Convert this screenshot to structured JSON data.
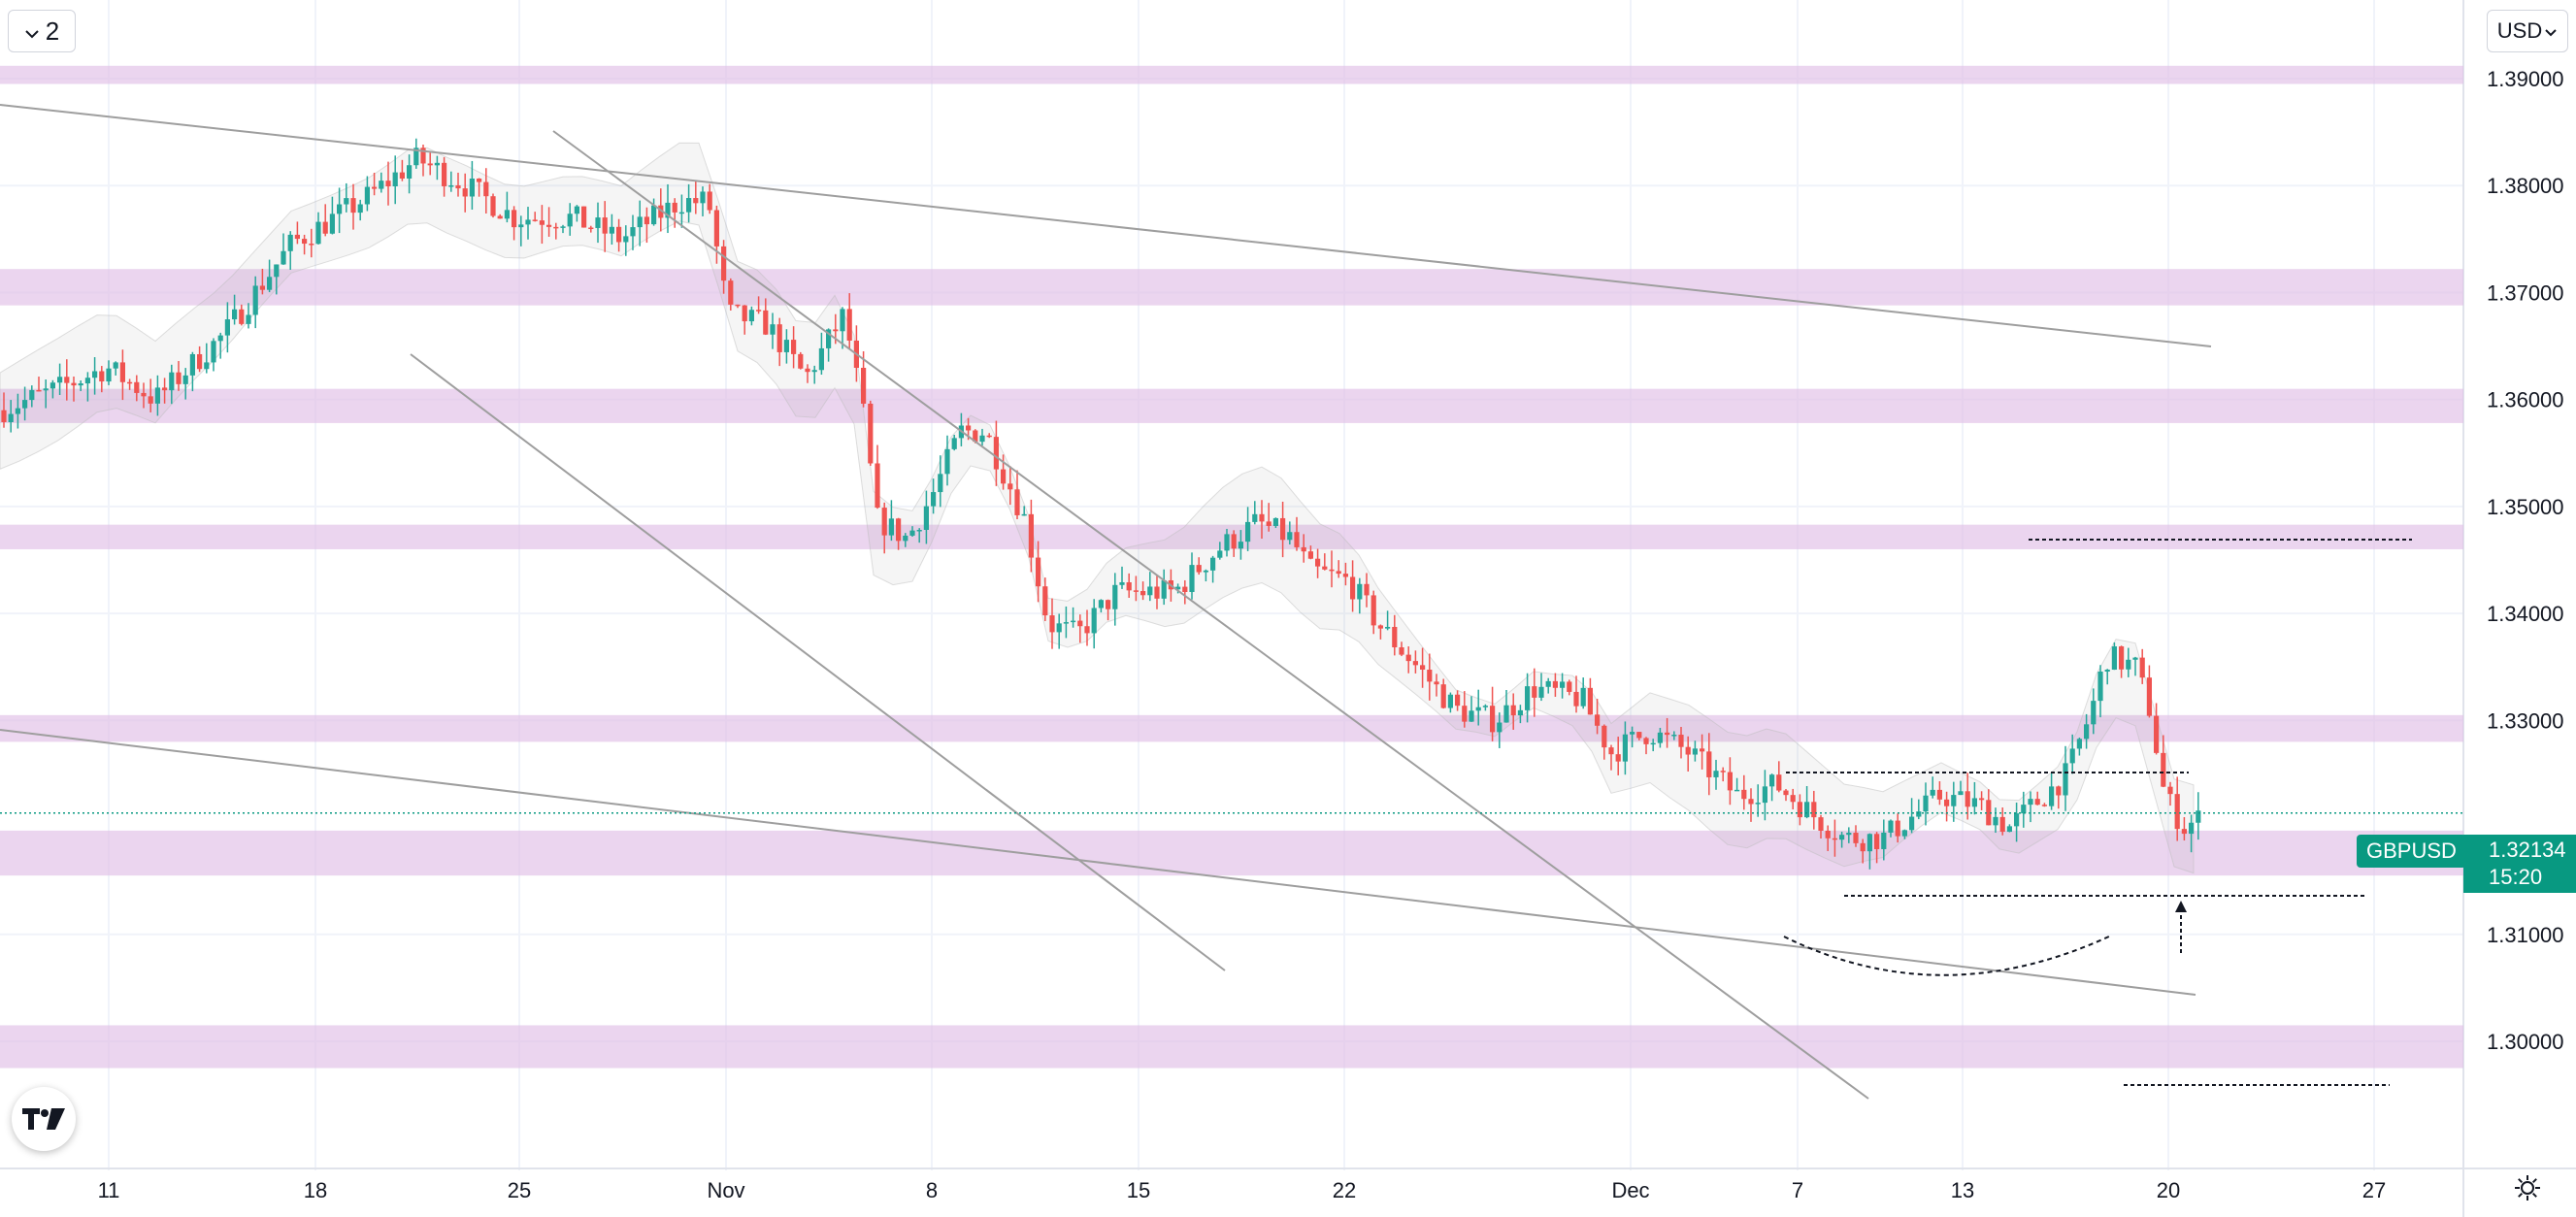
{
  "toolbar": {
    "layout_count": "2",
    "currency": "USD"
  },
  "symbol": {
    "name": "GBPUSD",
    "price": "1.32134",
    "countdown": "15:20"
  },
  "icons": {
    "layout": "chevron-down-icon",
    "currency": "chevron-down-icon",
    "logo": "tradingview-logo",
    "settings": "gear-icon"
  },
  "colors": {
    "up": "#26a69a",
    "down": "#ef5350",
    "zone": "#e1bee7",
    "price_line": "#089981",
    "trendline": "#9e9e9e",
    "grid": "#f0f3fa"
  },
  "chart_data": {
    "type": "candlestick",
    "instrument": "GBPUSD",
    "ylim": [
      1.2935,
      1.3965
    ],
    "y_ticks": [
      "1.39000",
      "1.38000",
      "1.37000",
      "1.36000",
      "1.35000",
      "1.34000",
      "1.33000",
      "1.31000",
      "1.30000"
    ],
    "x_ticks": [
      "11",
      "18",
      "25",
      "Nov",
      "8",
      "15",
      "22",
      "Dec",
      "7",
      "13",
      "20",
      "27"
    ],
    "grid": true,
    "current_price": 1.32134,
    "series_close_approx": [
      {
        "date": "2021-10-08",
        "close": 1.36
      },
      {
        "date": "2021-10-15",
        "close": 1.3745
      },
      {
        "date": "2021-10-20",
        "close": 1.3825
      },
      {
        "date": "2021-10-27",
        "close": 1.3745
      },
      {
        "date": "2021-10-29",
        "close": 1.368
      },
      {
        "date": "2021-11-03",
        "close": 1.361
      },
      {
        "date": "2021-11-05",
        "close": 1.349
      },
      {
        "date": "2021-11-09",
        "close": 1.357
      },
      {
        "date": "2021-11-11",
        "close": 1.339
      },
      {
        "date": "2021-11-18",
        "close": 1.348
      },
      {
        "date": "2021-11-24",
        "close": 1.336
      },
      {
        "date": "2021-11-29",
        "close": 1.33
      },
      {
        "date": "2021-12-03",
        "close": 1.323
      },
      {
        "date": "2021-12-08",
        "close": 1.319
      },
      {
        "date": "2021-12-14",
        "close": 1.323
      },
      {
        "date": "2021-12-16",
        "close": 1.336
      },
      {
        "date": "2021-12-20",
        "close": 1.3213
      }
    ],
    "zones": [
      {
        "low": 1.3895,
        "high": 1.3912
      },
      {
        "low": 1.3688,
        "high": 1.3722
      },
      {
        "low": 1.3578,
        "high": 1.361
      },
      {
        "low": 1.346,
        "high": 1.3483
      },
      {
        "low": 1.328,
        "high": 1.3305
      },
      {
        "low": 1.3155,
        "high": 1.3197
      },
      {
        "low": 1.2975,
        "high": 1.3015
      }
    ]
  }
}
